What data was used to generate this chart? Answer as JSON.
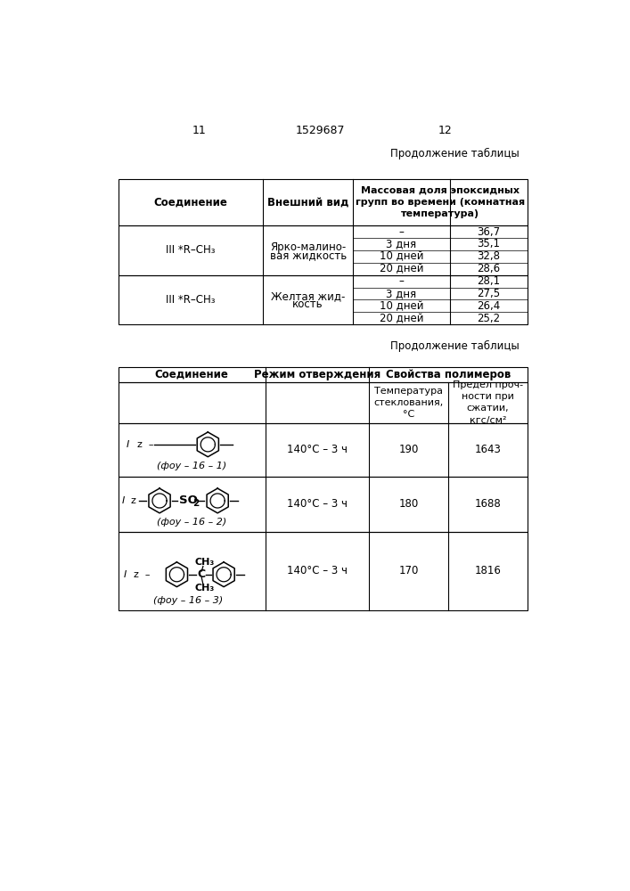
{
  "bg_color": "#ffffff",
  "page_num_left": "11",
  "page_num_center": "1529687",
  "page_num_right": "12",
  "cont_label": "Продолжение таблицы",
  "t1_hdr": [
    "Соединение",
    "Внешний вид",
    "Массовая доля эпоксидных\nгрупп во времени (комнатная\nтемпература)"
  ],
  "t1_rows": [
    {
      "compound": "III *R–CH₃",
      "appearance": [
        "Ярко-малино-",
        "вая жидкость"
      ],
      "times": [
        "–",
        "3 дня",
        "10 дней",
        "20 дней"
      ],
      "values": [
        "36,7",
        "35,1",
        "32,8",
        "28,6"
      ]
    },
    {
      "compound": "III *R–CH₃",
      "appearance": [
        "Желтая жид-",
        "кость"
      ],
      "times": [
        "–",
        "3 дня",
        "10 дней",
        "20 дней"
      ],
      "values": [
        "28,1",
        "27,5",
        "26,4",
        "25,2"
      ]
    }
  ],
  "t2_hdr1": [
    "Соединение",
    "Режим отверждения",
    "Свойства полимеров"
  ],
  "t2_hdr2_sub1": "Температура\nстеклования,\n°C",
  "t2_hdr2_sub2": "Предел проч-\nности при\nсжатии,\nкгс/см²",
  "t2_rows": [
    {
      "code": "(фоу – 16 – 1)",
      "curing": "140°С – 3 ч",
      "tg": "190",
      "str": "1643"
    },
    {
      "code": "(фоу – 16 – 2)",
      "curing": "140°С – 3 ч",
      "tg": "180",
      "str": "1688"
    },
    {
      "code": "(фоу – 16 – 3)",
      "curing": "140°С – 3 ч",
      "tg": "170",
      "str": "1816"
    }
  ]
}
